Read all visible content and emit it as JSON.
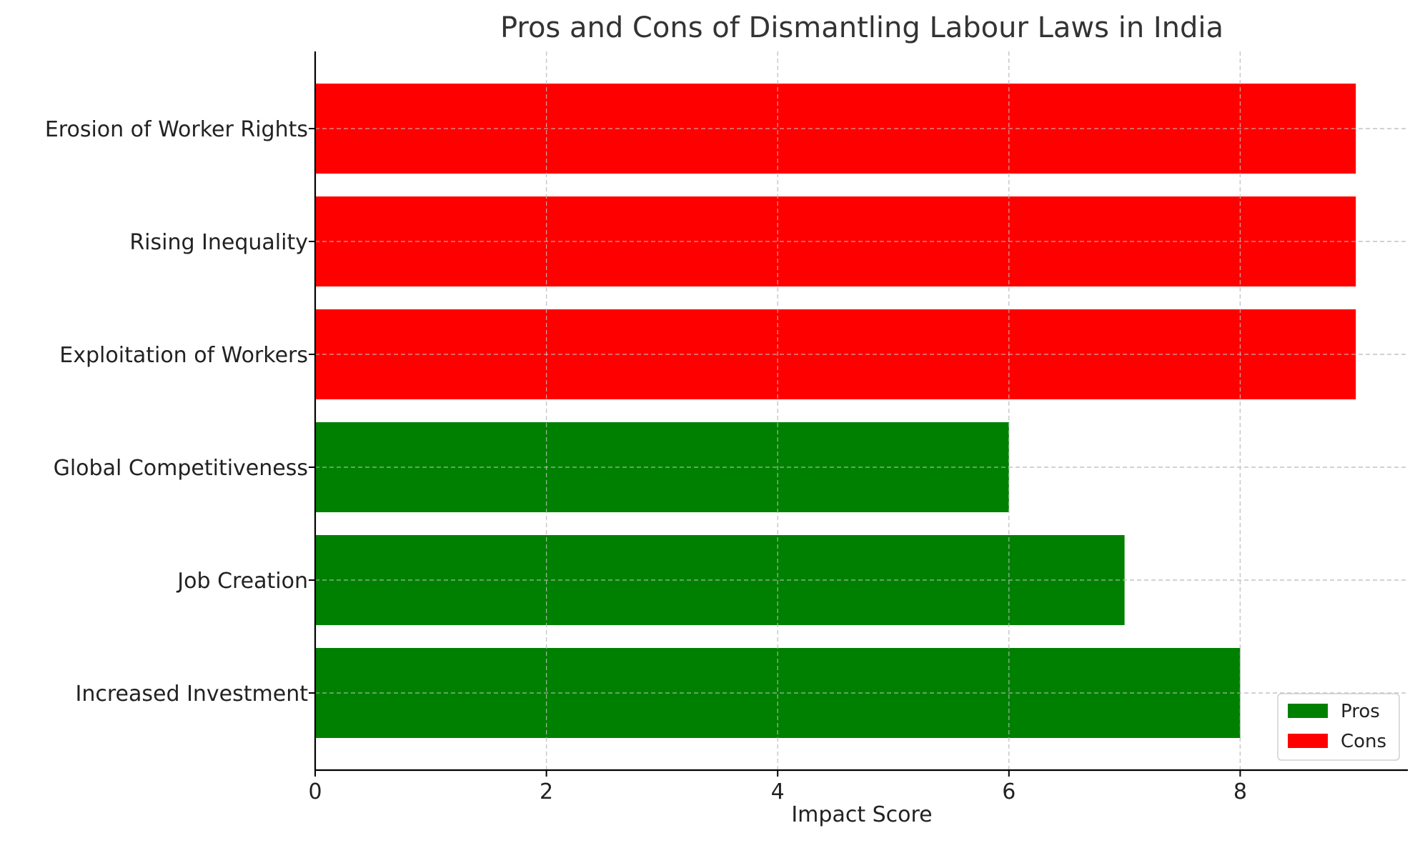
{
  "chart_data": {
    "type": "bar",
    "orientation": "horizontal",
    "title": "Pros and Cons of Dismantling Labour Laws in India",
    "xlabel": "Impact Score",
    "ylabel": "",
    "xlim": [
      0,
      9.45
    ],
    "x_ticks": [
      "0",
      "2",
      "4",
      "6",
      "8"
    ],
    "grid": true,
    "legend_position": "bottom-right",
    "categories": [
      "Increased Investment",
      "Job Creation",
      "Global Competitiveness",
      "Exploitation of Workers",
      "Rising Inequality",
      "Erosion of Worker Rights"
    ],
    "values": [
      8,
      7,
      6,
      9,
      9,
      9
    ],
    "groups": [
      "Pros",
      "Pros",
      "Pros",
      "Cons",
      "Cons",
      "Cons"
    ],
    "legend": [
      {
        "label": "Pros",
        "color": "#008000"
      },
      {
        "label": "Cons",
        "color": "#ff0000"
      }
    ]
  }
}
